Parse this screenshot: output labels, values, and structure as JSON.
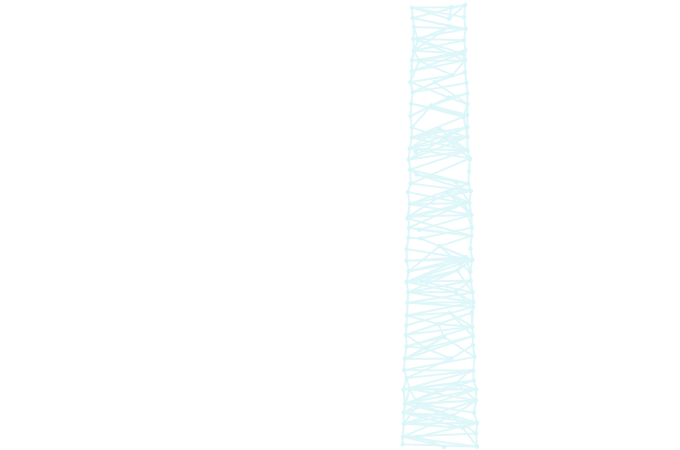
{
  "canvas": {
    "background": "#ffffff"
  },
  "network": {
    "stroke_color": "#e0f7fa",
    "node_color": "#d9f6fa"
  }
}
